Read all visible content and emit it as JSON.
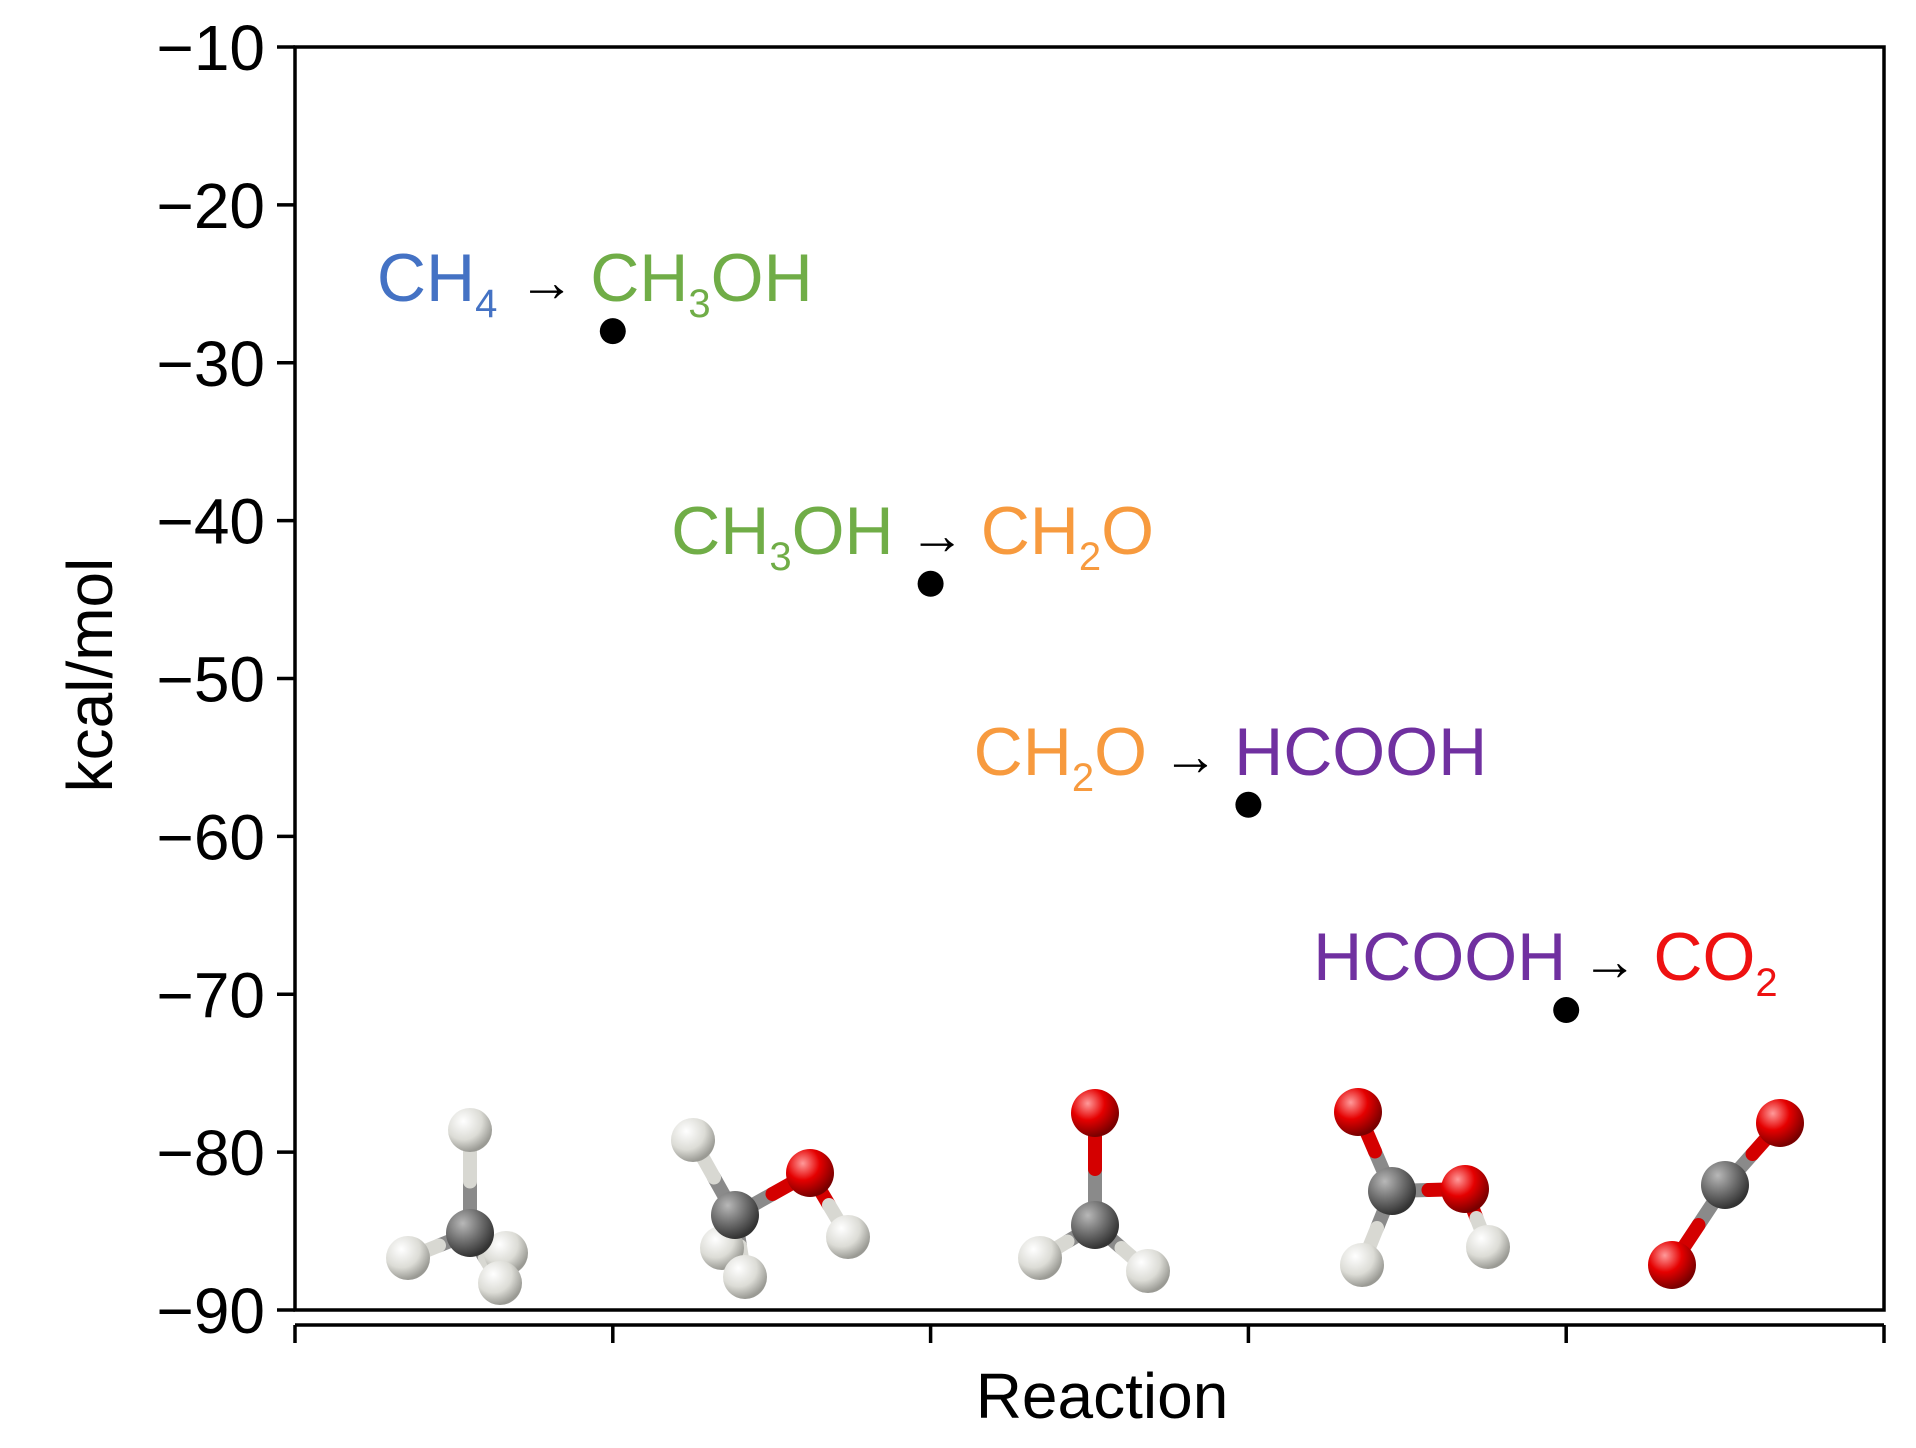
{
  "chart_data": {
    "type": "scatter",
    "title": "",
    "xlabel": "Reaction",
    "ylabel": "kcal/mol",
    "ylim": [
      -90,
      -10
    ],
    "yticks": [
      -10,
      -20,
      -30,
      -40,
      -50,
      -60,
      -70,
      -80,
      -90
    ],
    "ytick_labels": [
      "−10",
      "−20",
      "−30",
      "−40",
      "−50",
      "−60",
      "−70",
      "−80",
      "−90"
    ],
    "xlim": [
      0,
      5
    ],
    "xticks": [
      0,
      1,
      2,
      3,
      4,
      5
    ],
    "grid": false,
    "legend": "none",
    "marker_color": "#000000",
    "points": [
      {
        "x": 1,
        "y": -28
      },
      {
        "x": 2,
        "y": -44
      },
      {
        "x": 3,
        "y": -58
      },
      {
        "x": 4,
        "y": -71
      }
    ],
    "annotations": [
      {
        "reactant": {
          "base": "CH",
          "sub": "4",
          "tail": "",
          "color": "#4472c4"
        },
        "arrow": "→",
        "product": {
          "base": "CH",
          "sub": "3",
          "tail": "OH",
          "color": "#70ad47"
        }
      },
      {
        "reactant": {
          "base": "CH",
          "sub": "3",
          "tail": "OH",
          "color": "#70ad47"
        },
        "arrow": "→",
        "product": {
          "base": "CH",
          "sub": "2",
          "tail": "O",
          "color": "#f79a3e"
        }
      },
      {
        "reactant": {
          "base": "CH",
          "sub": "2",
          "tail": "O",
          "color": "#f79a3e"
        },
        "arrow": "→",
        "product": {
          "base": "HCOOH",
          "sub": "",
          "tail": "",
          "color": "#7030a0"
        }
      },
      {
        "reactant": {
          "base": "HCOOH",
          "sub": "",
          "tail": "",
          "color": "#7030a0"
        },
        "arrow": "→",
        "product": {
          "base": "CO",
          "sub": "2",
          "tail": "",
          "color": "#ee1111"
        }
      }
    ],
    "molecules": [
      "methane-molecule-icon",
      "methanol-molecule-icon",
      "formaldehyde-molecule-icon",
      "formic-acid-molecule-icon",
      "carbon-dioxide-molecule-icon"
    ],
    "atom_colors": {
      "carbon": "#6e6e6e",
      "oxygen": "#e50000",
      "hydrogen": "#e8e8e4"
    }
  }
}
